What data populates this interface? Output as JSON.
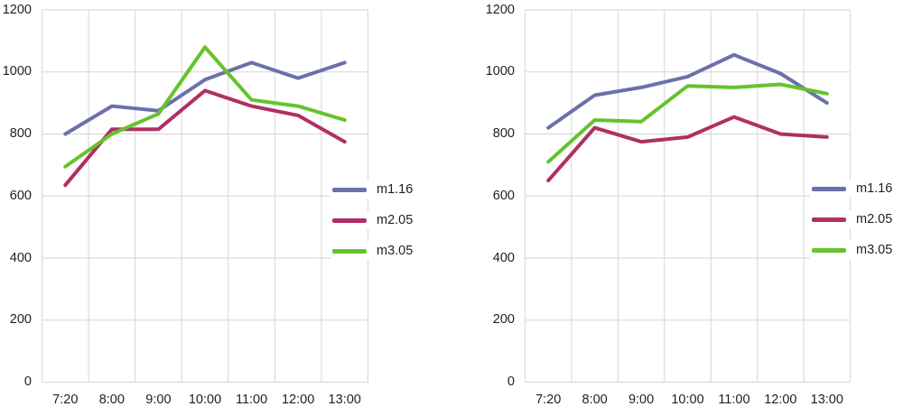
{
  "colors": {
    "series_m1_16": "#6C70A9",
    "series_m2_05": "#B02F64",
    "series_m3_05": "#65C32D",
    "gridline": "#D6D6D6",
    "tick_text": "#1F1F1F",
    "background": "#FFFFFF"
  },
  "chart_data": [
    {
      "type": "line",
      "title": "",
      "xlabel": "",
      "ylabel": "",
      "categories": [
        "7:20",
        "8:00",
        "9:00",
        "10:00",
        "11:00",
        "12:00",
        "13:00"
      ],
      "series": [
        {
          "name": "m1.16",
          "color": "#6C70A9",
          "values": [
            800,
            890,
            875,
            975,
            1030,
            980,
            1030
          ]
        },
        {
          "name": "m2.05",
          "color": "#B02F64",
          "values": [
            635,
            815,
            815,
            940,
            890,
            860,
            775
          ]
        },
        {
          "name": "m3.05",
          "color": "#65C32D",
          "values": [
            695,
            800,
            865,
            1080,
            910,
            890,
            845
          ]
        }
      ],
      "ylim": [
        0,
        1200
      ],
      "yticks": [
        0,
        200,
        400,
        600,
        800,
        1000,
        1200
      ],
      "grid": true,
      "legend_position": "right"
    },
    {
      "type": "line",
      "title": "",
      "xlabel": "",
      "ylabel": "",
      "categories": [
        "7:20",
        "8:00",
        "9:00",
        "10:00",
        "11:00",
        "12:00",
        "13:00"
      ],
      "series": [
        {
          "name": "m1.16",
          "color": "#6C70A9",
          "values": [
            820,
            925,
            950,
            985,
            1055,
            995,
            900
          ]
        },
        {
          "name": "m2.05",
          "color": "#B02F64",
          "values": [
            650,
            820,
            775,
            790,
            855,
            800,
            790
          ]
        },
        {
          "name": "m3.05",
          "color": "#65C32D",
          "values": [
            710,
            845,
            840,
            955,
            950,
            960,
            930
          ]
        }
      ],
      "ylim": [
        0,
        1200
      ],
      "yticks": [
        0,
        200,
        400,
        600,
        800,
        1000,
        1200
      ],
      "grid": true,
      "legend_position": "right"
    }
  ]
}
